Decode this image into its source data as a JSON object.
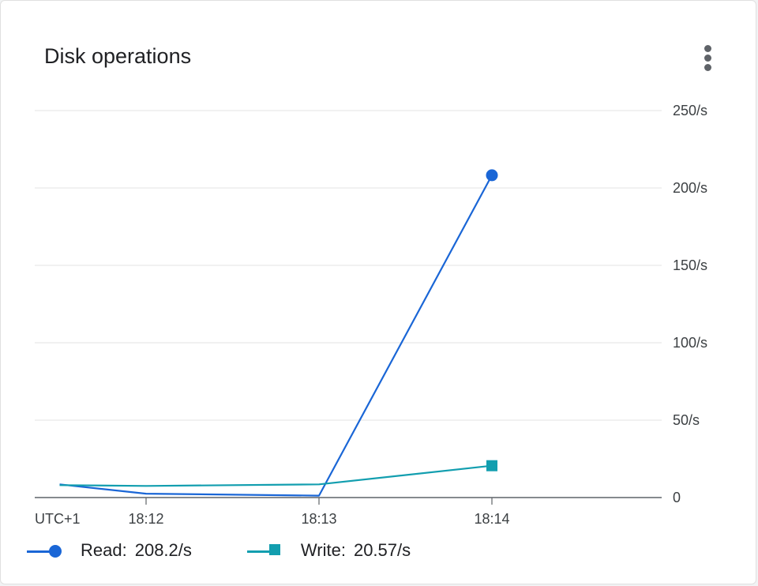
{
  "card": {
    "title": "Disk operations",
    "menu_icon": "more-vert-icon"
  },
  "chart_data": {
    "type": "line",
    "title": "Disk operations",
    "timezone_label": "UTC+1",
    "x": [
      "18:11:30",
      "18:12",
      "18:13",
      "18:14"
    ],
    "x_tick_labels": [
      "18:12",
      "18:13",
      "18:14"
    ],
    "y_tick_labels": [
      "0",
      "50/s",
      "100/s",
      "150/s",
      "200/s",
      "250/s"
    ],
    "ylim": [
      0,
      250
    ],
    "grid": true,
    "y_axis_side": "right",
    "legend_position": "bottom",
    "series": [
      {
        "name": "Read",
        "color": "#1a66d6",
        "marker": "circle",
        "values": [
          8.5,
          2.5,
          1.2,
          208.2
        ],
        "legend_value": "208.2/s"
      },
      {
        "name": "Write",
        "color": "#129eaf",
        "marker": "square",
        "values": [
          8,
          7.5,
          8.5,
          20.57
        ],
        "legend_value": "20.57/s"
      }
    ]
  }
}
